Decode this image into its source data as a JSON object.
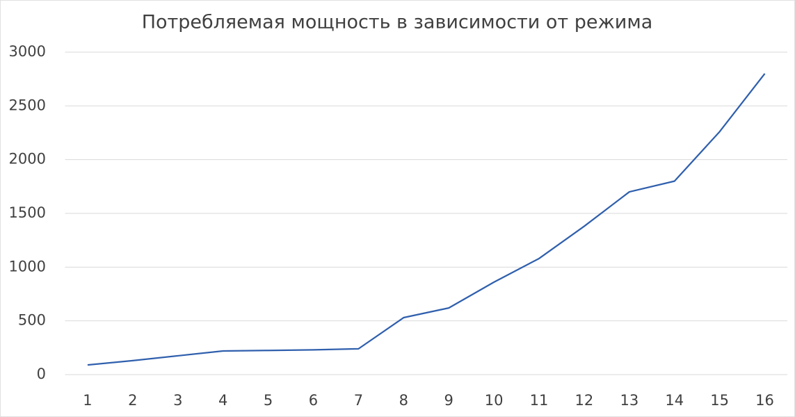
{
  "chart_data": {
    "type": "line",
    "title": "Потребляемая мощность в зависимости от режима",
    "categories": [
      "1",
      "2",
      "3",
      "4",
      "5",
      "6",
      "7",
      "8",
      "9",
      "10",
      "11",
      "12",
      "13",
      "14",
      "15",
      "16"
    ],
    "series": [
      {
        "color": "#2f5fad",
        "values": [
          90,
          130,
          175,
          220,
          225,
          230,
          240,
          530,
          620,
          860,
          1080,
          1380,
          1700,
          1800,
          2260,
          2800
        ]
      }
    ],
    "ylim": [
      0,
      3000
    ],
    "yticks": [
      0,
      500,
      1000,
      1500,
      2000,
      2500,
      3000
    ],
    "grid": true
  }
}
